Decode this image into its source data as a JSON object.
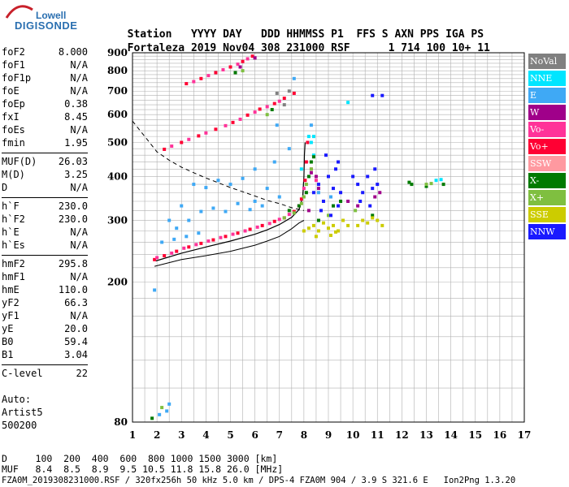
{
  "logo": {
    "line1": "Lowell",
    "line2": "DIGISONDE"
  },
  "header": {
    "row1": [
      "Station",
      "YYYY",
      "DAY",
      "DDD",
      "HHMMSS",
      "P1",
      "FFS",
      "S",
      "AXN",
      "PPS",
      "IGA",
      "PS"
    ],
    "row2": [
      "Fortaleza",
      "2019",
      "Nov04",
      "308",
      "231000",
      "RSF",
      "1",
      "714",
      "100",
      "10+",
      "11"
    ]
  },
  "params": [
    {
      "label": "foF2",
      "value": "8.000"
    },
    {
      "label": "foF1",
      "value": "N/A"
    },
    {
      "label": "foF1p",
      "value": "N/A"
    },
    {
      "label": "foE",
      "value": "N/A"
    },
    {
      "label": "foEp",
      "value": "0.38"
    },
    {
      "label": "fxI",
      "value": "8.45"
    },
    {
      "label": "foEs",
      "value": "N/A"
    },
    {
      "label": "fmin",
      "value": "1.95"
    },
    {
      "label": "MUF(D)",
      "value": "26.03",
      "sep": true
    },
    {
      "label": "M(D)",
      "value": "3.25"
    },
    {
      "label": "D",
      "value": "N/A"
    },
    {
      "label": "h`F",
      "value": "230.0",
      "sep": true
    },
    {
      "label": "h`F2",
      "value": "230.0"
    },
    {
      "label": "h`E",
      "value": "N/A"
    },
    {
      "label": "h`Es",
      "value": "N/A"
    },
    {
      "label": "hmF2",
      "value": "295.8",
      "sep": true
    },
    {
      "label": "hmF1",
      "value": "N/A"
    },
    {
      "label": "hmE",
      "value": "110.0"
    },
    {
      "label": "yF2",
      "value": "66.3"
    },
    {
      "label": "yF1",
      "value": "N/A"
    },
    {
      "label": "yE",
      "value": "20.0"
    },
    {
      "label": "B0",
      "value": "59.4"
    },
    {
      "label": "B1",
      "value": "3.04"
    },
    {
      "label": "C-level",
      "value": "22",
      "sep": true
    }
  ],
  "auto": {
    "line1": "Auto:",
    "line2": "Artist5",
    "line3": "500200"
  },
  "legend": [
    {
      "label": "NoVal",
      "color": "#808080"
    },
    {
      "label": "NNE",
      "color": "#00e5ff"
    },
    {
      "label": "E",
      "color": "#3fa9f5"
    },
    {
      "label": "W",
      "color": "#a0008a"
    },
    {
      "label": "Vo-",
      "color": "#ff3399"
    },
    {
      "label": "Vo+",
      "color": "#ff0033"
    },
    {
      "label": "SSW",
      "color": "#ff99a0"
    },
    {
      "label": "X-",
      "color": "#007a00"
    },
    {
      "label": "X+",
      "color": "#7fbf40"
    },
    {
      "label": "SSE",
      "color": "#cccc00"
    },
    {
      "label": "NNW",
      "color": "#1a1aff"
    }
  ],
  "footer": {
    "line1": "D     100  200  400  600  800 1000 1500 3000 [km]",
    "line2": "MUF   8.4  8.5  8.9  9.5 10.5 11.8 15.8 26.0 [MHz]",
    "line3": "FZA0M_2019308231000.RSF / 320fx256h 50 kHz 5.0 km / DPS-4 FZA0M 904 / 3.9 S 321.6 E   Ion2Png 1.3.20"
  },
  "chart_data": {
    "type": "scatter",
    "title": "",
    "xlabel": "",
    "ylabel": "",
    "xlim": [
      1,
      17
    ],
    "ylim": [
      80,
      900
    ],
    "y_scale": "log",
    "x_ticks": [
      1,
      2,
      3,
      4,
      5,
      6,
      7,
      8,
      9,
      10,
      11,
      12,
      13,
      14,
      15,
      16,
      17
    ],
    "y_ticks": [
      80,
      200,
      300,
      400,
      500,
      600,
      700,
      800,
      900
    ],
    "grid": true,
    "legend_position": "right",
    "series": [
      {
        "name": "Vo+",
        "color": "#ff0033",
        "points": [
          [
            1.9,
            232
          ],
          [
            2.3,
            238
          ],
          [
            2.8,
            245
          ],
          [
            3.3,
            252
          ],
          [
            3.8,
            258
          ],
          [
            4.3,
            264
          ],
          [
            4.8,
            270
          ],
          [
            5.3,
            276
          ],
          [
            5.8,
            283
          ],
          [
            6.3,
            290
          ],
          [
            6.8,
            298
          ],
          [
            7.2,
            305
          ],
          [
            7.6,
            318
          ],
          [
            7.9,
            345
          ],
          [
            8.05,
            390
          ],
          [
            8.1,
            440
          ],
          [
            8.15,
            500
          ],
          [
            2.3,
            478
          ],
          [
            3.0,
            500
          ],
          [
            3.7,
            522
          ],
          [
            4.4,
            545
          ],
          [
            5.1,
            570
          ],
          [
            5.7,
            598
          ],
          [
            6.2,
            622
          ],
          [
            6.8,
            645
          ],
          [
            7.2,
            668
          ],
          [
            7.6,
            690
          ],
          [
            3.2,
            735
          ],
          [
            3.8,
            760
          ],
          [
            4.4,
            790
          ],
          [
            5.0,
            820
          ],
          [
            5.5,
            850
          ],
          [
            5.9,
            880
          ]
        ]
      },
      {
        "name": "Vo-",
        "color": "#ff3399",
        "points": [
          [
            2.0,
            235
          ],
          [
            2.6,
            242
          ],
          [
            3.1,
            250
          ],
          [
            3.6,
            256
          ],
          [
            4.1,
            262
          ],
          [
            4.6,
            268
          ],
          [
            5.1,
            274
          ],
          [
            5.6,
            280
          ],
          [
            6.1,
            287
          ],
          [
            6.6,
            294
          ],
          [
            7.0,
            302
          ],
          [
            7.4,
            312
          ],
          [
            7.8,
            330
          ],
          [
            8.0,
            370
          ],
          [
            2.6,
            488
          ],
          [
            3.3,
            510
          ],
          [
            4.0,
            532
          ],
          [
            4.8,
            558
          ],
          [
            5.4,
            582
          ],
          [
            6.0,
            610
          ],
          [
            6.5,
            632
          ],
          [
            7.0,
            655
          ],
          [
            3.5,
            745
          ],
          [
            4.1,
            775
          ],
          [
            4.7,
            805
          ],
          [
            5.3,
            835
          ],
          [
            5.7,
            865
          ],
          [
            8.3,
            420
          ],
          [
            8.5,
            390
          ]
        ]
      },
      {
        "name": "E",
        "color": "#3fa9f5",
        "points": [
          [
            2.5,
            300
          ],
          [
            3.0,
            330
          ],
          [
            3.5,
            380
          ],
          [
            4.0,
            372
          ],
          [
            4.5,
            390
          ],
          [
            5.0,
            380
          ],
          [
            5.5,
            395
          ],
          [
            6.0,
            340
          ],
          [
            6.5,
            370
          ],
          [
            7.0,
            350
          ],
          [
            2.8,
            285
          ],
          [
            3.3,
            300
          ],
          [
            3.8,
            318
          ],
          [
            4.3,
            325
          ],
          [
            4.8,
            318
          ],
          [
            5.3,
            335
          ],
          [
            5.8,
            322
          ],
          [
            6.3,
            330
          ],
          [
            2.2,
            260
          ],
          [
            2.7,
            265
          ],
          [
            3.2,
            270
          ],
          [
            3.7,
            276
          ],
          [
            6.0,
            420
          ],
          [
            6.8,
            440
          ],
          [
            7.4,
            480
          ],
          [
            8.3,
            560
          ],
          [
            7.6,
            760
          ],
          [
            6.9,
            560
          ],
          [
            2.1,
            84
          ],
          [
            2.4,
            86
          ],
          [
            2.5,
            90
          ],
          [
            1.9,
            190
          ],
          [
            8.6,
            360
          ],
          [
            9.1,
            350
          ],
          [
            9.2,
            330
          ]
        ]
      },
      {
        "name": "NNE",
        "color": "#00e5ff",
        "points": [
          [
            8.2,
            520
          ],
          [
            8.4,
            520
          ],
          [
            8.3,
            500
          ],
          [
            9.8,
            650
          ],
          [
            13.4,
            390
          ],
          [
            13.6,
            392
          ],
          [
            7.9,
            420
          ],
          [
            8.4,
            460
          ]
        ]
      },
      {
        "name": "X-",
        "color": "#007a00",
        "points": [
          [
            7.4,
            320
          ],
          [
            7.8,
            330
          ],
          [
            8.1,
            360
          ],
          [
            8.2,
            400
          ],
          [
            8.3,
            440
          ],
          [
            8.4,
            455
          ],
          [
            9.2,
            330
          ],
          [
            9.5,
            340
          ],
          [
            10.8,
            310
          ],
          [
            12.3,
            385
          ],
          [
            12.4,
            380
          ],
          [
            13.0,
            375
          ],
          [
            13.7,
            380
          ],
          [
            8.6,
            300
          ],
          [
            1.8,
            82
          ],
          [
            5.2,
            790
          ],
          [
            6.7,
            620
          ]
        ]
      },
      {
        "name": "X+",
        "color": "#7fbf40",
        "points": [
          [
            7.2,
            305
          ],
          [
            7.6,
            315
          ],
          [
            7.9,
            335
          ],
          [
            8.0,
            350
          ],
          [
            8.1,
            380
          ],
          [
            8.3,
            420
          ],
          [
            9.0,
            310
          ],
          [
            10.1,
            320
          ],
          [
            13.0,
            380
          ],
          [
            13.2,
            382
          ],
          [
            5.5,
            800
          ],
          [
            6.5,
            600
          ],
          [
            2.2,
            88
          ]
        ]
      },
      {
        "name": "SSE",
        "color": "#cccc00",
        "points": [
          [
            8.0,
            280
          ],
          [
            8.2,
            285
          ],
          [
            8.4,
            290
          ],
          [
            8.6,
            280
          ],
          [
            8.8,
            295
          ],
          [
            9.0,
            285
          ],
          [
            9.2,
            290
          ],
          [
            9.4,
            280
          ],
          [
            9.6,
            300
          ],
          [
            9.8,
            290
          ],
          [
            10.2,
            290
          ],
          [
            10.4,
            300
          ],
          [
            10.6,
            295
          ],
          [
            10.8,
            305
          ],
          [
            11.0,
            300
          ],
          [
            11.2,
            290
          ],
          [
            8.5,
            270
          ],
          [
            9.1,
            272
          ],
          [
            9.3,
            278
          ]
        ]
      },
      {
        "name": "NNW",
        "color": "#1a1aff",
        "points": [
          [
            8.4,
            360
          ],
          [
            8.6,
            380
          ],
          [
            8.8,
            340
          ],
          [
            9.0,
            400
          ],
          [
            9.2,
            370
          ],
          [
            9.3,
            420
          ],
          [
            9.5,
            360
          ],
          [
            8.7,
            320
          ],
          [
            9.1,
            310
          ],
          [
            9.4,
            330
          ],
          [
            10.0,
            400
          ],
          [
            10.2,
            380
          ],
          [
            10.4,
            360
          ],
          [
            10.6,
            400
          ],
          [
            10.8,
            370
          ],
          [
            10.9,
            420
          ],
          [
            11.0,
            380
          ],
          [
            10.3,
            340
          ],
          [
            10.7,
            330
          ],
          [
            10.8,
            680
          ],
          [
            11.2,
            680
          ],
          [
            9.4,
            440
          ],
          [
            8.9,
            460
          ]
        ]
      },
      {
        "name": "W",
        "color": "#a0008a",
        "points": [
          [
            8.3,
            410
          ],
          [
            8.5,
            400
          ],
          [
            8.6,
            370
          ],
          [
            10.2,
            330
          ],
          [
            10.9,
            350
          ],
          [
            11.1,
            360
          ],
          [
            9.8,
            340
          ],
          [
            8.2,
            320
          ],
          [
            5.4,
            820
          ],
          [
            6.0,
            870
          ]
        ]
      },
      {
        "name": "NoVal",
        "color": "#808080",
        "points": [
          [
            7.2,
            640
          ],
          [
            7.4,
            700
          ],
          [
            6.9,
            690
          ]
        ]
      }
    ],
    "profile_curve": [
      [
        1.9,
        222
      ],
      [
        3,
        232
      ],
      [
        4,
        238
      ],
      [
        5,
        245
      ],
      [
        6,
        255
      ],
      [
        6.5,
        262
      ],
      [
        7,
        270
      ],
      [
        7.5,
        284
      ],
      [
        7.8,
        295
      ],
      [
        8.0,
        300
      ]
    ],
    "trace_curve": [
      [
        1.95,
        230
      ],
      [
        3,
        242
      ],
      [
        4,
        252
      ],
      [
        5,
        262
      ],
      [
        6,
        274
      ],
      [
        6.5,
        282
      ],
      [
        7,
        292
      ],
      [
        7.5,
        306
      ],
      [
        7.8,
        322
      ],
      [
        7.95,
        350
      ],
      [
        8.0,
        400
      ],
      [
        8.02,
        460
      ],
      [
        8.05,
        500
      ]
    ],
    "muf_curve": [
      [
        1,
        575
      ],
      [
        1.5,
        520
      ],
      [
        2,
        470
      ],
      [
        2.5,
        445
      ],
      [
        3,
        425
      ],
      [
        3.5,
        410
      ],
      [
        4,
        396
      ],
      [
        4.5,
        384
      ],
      [
        5,
        372
      ],
      [
        5.5,
        362
      ],
      [
        6,
        352
      ],
      [
        6.5,
        342
      ],
      [
        7,
        335
      ],
      [
        7.5,
        326
      ],
      [
        8,
        320
      ]
    ]
  }
}
